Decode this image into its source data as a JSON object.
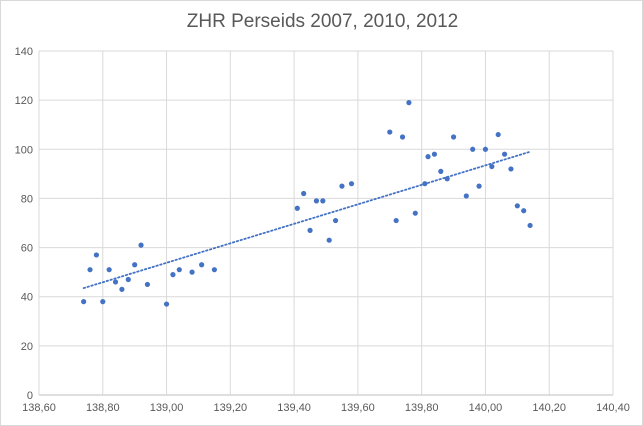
{
  "chart_data": {
    "type": "scatter",
    "title": "ZHR Perseids 2007, 2010, 2012",
    "xlabel": "",
    "ylabel": "",
    "xlim": [
      138.6,
      140.4
    ],
    "ylim": [
      0,
      140
    ],
    "x_ticks": [
      138.6,
      138.8,
      139.0,
      139.2,
      139.4,
      139.6,
      139.8,
      140.0,
      140.2,
      140.4
    ],
    "x_tick_labels": [
      "138,60",
      "138,80",
      "139,00",
      "139,20",
      "139,40",
      "139,60",
      "139,80",
      "140,00",
      "140,20",
      "140,40"
    ],
    "y_ticks": [
      0,
      20,
      40,
      60,
      80,
      100,
      120,
      140
    ],
    "y_tick_labels": [
      "0",
      "20",
      "40",
      "60",
      "80",
      "100",
      "120",
      "140"
    ],
    "grid": true,
    "legend": "none",
    "series": [
      {
        "points": [
          [
            138.74,
            38
          ],
          [
            138.76,
            51
          ],
          [
            138.78,
            57
          ],
          [
            138.8,
            38
          ],
          [
            138.82,
            51
          ],
          [
            138.84,
            46
          ],
          [
            138.86,
            43
          ],
          [
            138.88,
            47
          ],
          [
            138.9,
            53
          ],
          [
            138.92,
            61
          ],
          [
            138.94,
            45
          ],
          [
            139.0,
            37
          ],
          [
            139.02,
            49
          ],
          [
            139.04,
            51
          ],
          [
            139.08,
            50
          ],
          [
            139.11,
            53
          ],
          [
            139.15,
            51
          ],
          [
            139.41,
            76
          ],
          [
            139.43,
            82
          ],
          [
            139.45,
            67
          ],
          [
            139.47,
            79
          ],
          [
            139.49,
            79
          ],
          [
            139.51,
            63
          ],
          [
            139.53,
            71
          ],
          [
            139.55,
            85
          ],
          [
            139.58,
            86
          ],
          [
            139.7,
            107
          ],
          [
            139.72,
            71
          ],
          [
            139.74,
            105
          ],
          [
            139.76,
            119
          ],
          [
            139.78,
            74
          ],
          [
            139.81,
            86
          ],
          [
            139.82,
            97
          ],
          [
            139.84,
            98
          ],
          [
            139.86,
            91
          ],
          [
            139.88,
            88
          ],
          [
            139.9,
            105
          ],
          [
            139.94,
            81
          ],
          [
            139.96,
            100
          ],
          [
            139.98,
            85
          ],
          [
            140.0,
            100
          ],
          [
            140.02,
            93
          ],
          [
            140.04,
            106
          ],
          [
            140.06,
            98
          ],
          [
            140.08,
            92
          ],
          [
            140.1,
            77
          ],
          [
            140.12,
            75
          ],
          [
            140.14,
            69
          ]
        ]
      }
    ],
    "trendline": {
      "style": "linear-dotted",
      "x_range": [
        138.74,
        140.14
      ],
      "y_range": [
        43.5,
        99
      ]
    },
    "colors": {
      "marker": "#4472c4",
      "trendline": "#4472c4",
      "grid": "#d9d9d9",
      "axis": "#bfbfbf",
      "text": "#595959"
    }
  }
}
